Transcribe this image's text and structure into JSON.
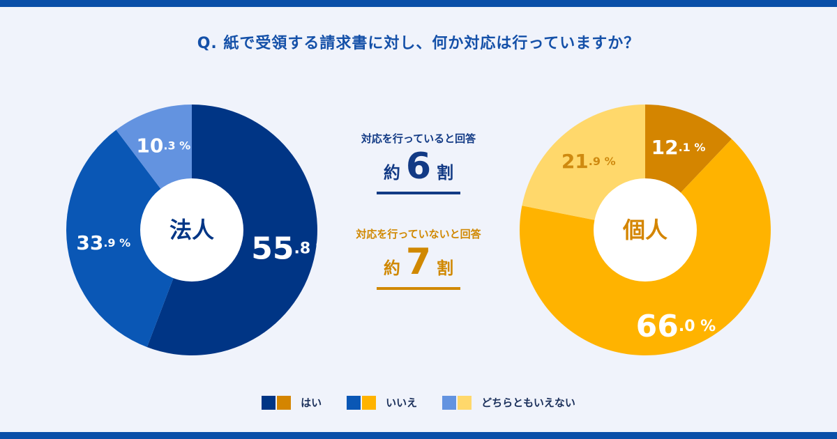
{
  "title": "Q. 紙で受領する請求書に対し、何か対応は行っていますか？",
  "center": {
    "yes_label": "対応を行っていると回答",
    "yes_approx": "約",
    "yes_num": "6",
    "yes_unit": "割",
    "no_label": "対応を行っていないと回答",
    "no_approx": "約",
    "no_num": "7",
    "no_unit": "割"
  },
  "legend": [
    "はい",
    "いいえ",
    "どちらともいえない"
  ],
  "chart_data": [
    {
      "type": "pie",
      "center_label": "法人",
      "categories": [
        "はい",
        "いいえ",
        "どちらともいえない"
      ],
      "values": [
        55.8,
        33.9,
        10.3
      ],
      "colors": [
        "#003585",
        "#0a57b5",
        "#6393e0"
      ],
      "label_colors": [
        "#ffffff",
        "#ffffff",
        "#ffffff"
      ]
    },
    {
      "type": "pie",
      "center_label": "個人",
      "categories": [
        "はい",
        "いいえ",
        "どちらともいえない"
      ],
      "values": [
        12.1,
        66.0,
        21.9
      ],
      "colors": [
        "#d48500",
        "#ffb300",
        "#ffd86b"
      ],
      "label_colors": [
        "#ffffff",
        "#ffffff",
        "#cf8a10"
      ]
    }
  ]
}
